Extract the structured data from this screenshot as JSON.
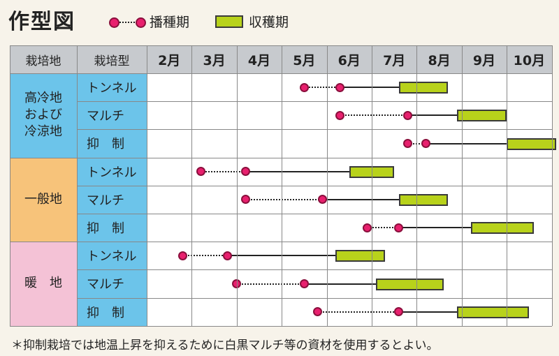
{
  "title": "作型図",
  "legend": {
    "sowing_label": "播種期",
    "harvest_label": "収穫期"
  },
  "colors": {
    "sowing": "#e8206e",
    "harvest": "#b8d21b",
    "region_highland": "#6cc4ea",
    "region_general": "#f7c37a",
    "region_warm": "#f4c2d6",
    "type_cell": "#6cc4ea",
    "header": "#c7cace"
  },
  "header": {
    "col1": "栽培地",
    "col2": "栽培型",
    "months": [
      "2月",
      "3月",
      "4月",
      "5月",
      "6月",
      "7月",
      "8月",
      "9月",
      "10月"
    ]
  },
  "groups": [
    {
      "region": "高冷地\nおよび\n冷涼地",
      "color_key": "region_highland",
      "rows": [
        {
          "type": "トンネル",
          "sow_start": 3.5,
          "sow_end": 4.3,
          "harvest_start": 5.6,
          "harvest_end": 6.7
        },
        {
          "type": "マルチ",
          "sow_start": 4.3,
          "sow_end": 5.8,
          "harvest_start": 6.9,
          "harvest_end": 8.0
        },
        {
          "type": "抑　制",
          "sow_start": 5.8,
          "sow_end": 6.2,
          "harvest_start": 8.0,
          "harvest_end": 9.1
        }
      ]
    },
    {
      "region": "一般地",
      "color_key": "region_general",
      "rows": [
        {
          "type": "トンネル",
          "sow_start": 1.2,
          "sow_end": 2.2,
          "harvest_start": 4.5,
          "harvest_end": 5.5
        },
        {
          "type": "マルチ",
          "sow_start": 2.2,
          "sow_end": 3.9,
          "harvest_start": 5.6,
          "harvest_end": 6.7
        },
        {
          "type": "抑　制",
          "sow_start": 4.9,
          "sow_end": 5.6,
          "harvest_start": 7.2,
          "harvest_end": 8.6
        }
      ]
    },
    {
      "region": "暖　地",
      "color_key": "region_warm",
      "rows": [
        {
          "type": "トンネル",
          "sow_start": 0.8,
          "sow_end": 1.8,
          "harvest_start": 4.2,
          "harvest_end": 5.3
        },
        {
          "type": "マルチ",
          "sow_start": 2.0,
          "sow_end": 3.5,
          "harvest_start": 5.1,
          "harvest_end": 6.6
        },
        {
          "type": "抑　制",
          "sow_start": 3.8,
          "sow_end": 5.6,
          "harvest_start": 6.9,
          "harvest_end": 8.5
        }
      ]
    }
  ],
  "footnote": "＊抑制栽培では地温上昇を抑えるために白黒マルチ等の資材を使用するとよい。"
}
